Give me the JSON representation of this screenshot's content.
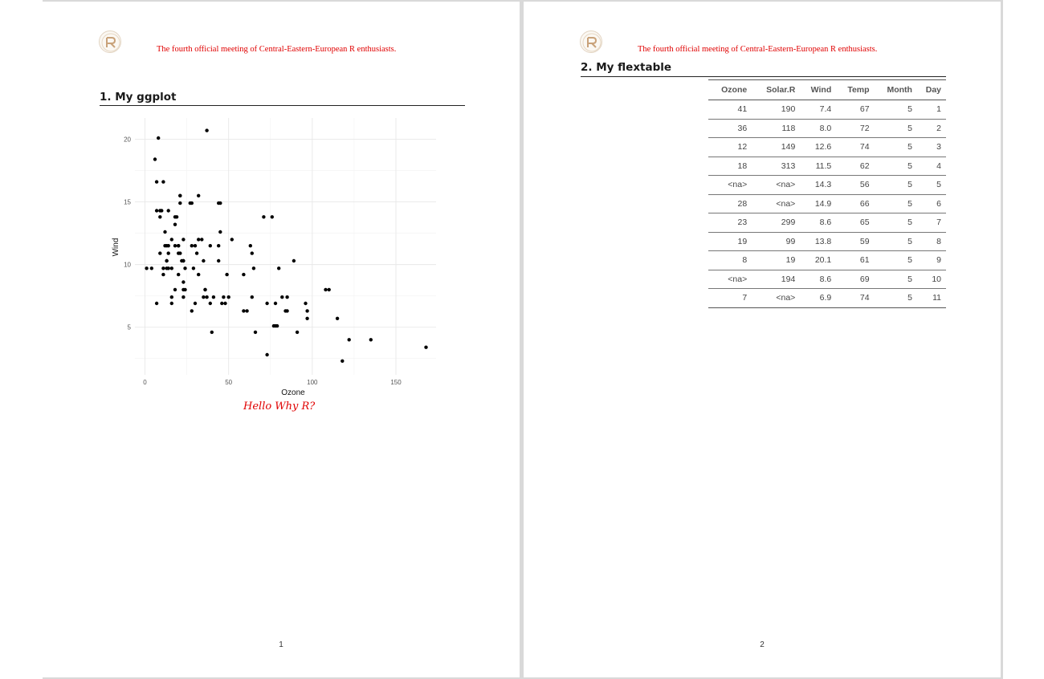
{
  "header": {
    "text": "The fourth official meeting of Central-Eastern-European R enthusiasts."
  },
  "page1": {
    "section_title": "1. My ggplot",
    "caption": "Hello Why R?",
    "page_number": "1"
  },
  "page2": {
    "section_title": "2. My flextable",
    "page_number": "2"
  },
  "chart_data": {
    "type": "scatter",
    "title": "",
    "xlabel": "Ozone",
    "ylabel": "Wind",
    "xlim": [
      -6,
      174
    ],
    "ylim": [
      1.2,
      21.7
    ],
    "x_ticks": [
      0,
      50,
      100,
      150
    ],
    "y_ticks": [
      5,
      10,
      15,
      20
    ],
    "grid": true,
    "points": [
      [
        41,
        7.4
      ],
      [
        36,
        8.0
      ],
      [
        12,
        12.6
      ],
      [
        18,
        11.5
      ],
      [
        28,
        14.9
      ],
      [
        23,
        8.6
      ],
      [
        19,
        13.8
      ],
      [
        8,
        20.1
      ],
      [
        7,
        6.9
      ],
      [
        16,
        9.7
      ],
      [
        11,
        9.2
      ],
      [
        14,
        10.9
      ],
      [
        18,
        13.2
      ],
      [
        14,
        11.5
      ],
      [
        34,
        12.0
      ],
      [
        6,
        18.4
      ],
      [
        30,
        11.5
      ],
      [
        11,
        9.7
      ],
      [
        1,
        9.7
      ],
      [
        11,
        16.6
      ],
      [
        4,
        9.7
      ],
      [
        32,
        12.0
      ],
      [
        23,
        12.0
      ],
      [
        45,
        14.9
      ],
      [
        115,
        5.7
      ],
      [
        37,
        7.4
      ],
      [
        29,
        9.7
      ],
      [
        71,
        13.8
      ],
      [
        39,
        11.5
      ],
      [
        23,
        8.0
      ],
      [
        21,
        14.9
      ],
      [
        37,
        20.7
      ],
      [
        20,
        9.2
      ],
      [
        12,
        11.5
      ],
      [
        13,
        10.3
      ],
      [
        135,
        4.0
      ],
      [
        49,
        9.2
      ],
      [
        32,
        9.2
      ],
      [
        64,
        10.9
      ],
      [
        40,
        4.6
      ],
      [
        77,
        5.1
      ],
      [
        97,
        6.3
      ],
      [
        97,
        5.7
      ],
      [
        85,
        7.4
      ],
      [
        10,
        14.3
      ],
      [
        27,
        14.9
      ],
      [
        7,
        14.3
      ],
      [
        48,
        6.9
      ],
      [
        35,
        10.3
      ],
      [
        61,
        6.3
      ],
      [
        79,
        5.1
      ],
      [
        63,
        11.5
      ],
      [
        16,
        6.9
      ],
      [
        80,
        9.7
      ],
      [
        108,
        8.0
      ],
      [
        20,
        11.5
      ],
      [
        52,
        12.0
      ],
      [
        82,
        7.4
      ],
      [
        50,
        7.4
      ],
      [
        64,
        7.4
      ],
      [
        59,
        9.2
      ],
      [
        39,
        6.9
      ],
      [
        9,
        13.8
      ],
      [
        16,
        7.4
      ],
      [
        78,
        6.9
      ],
      [
        35,
        7.4
      ],
      [
        66,
        4.6
      ],
      [
        122,
        4.0
      ],
      [
        89,
        10.3
      ],
      [
        110,
        8.0
      ],
      [
        44,
        11.5
      ],
      [
        28,
        11.5
      ],
      [
        65,
        9.7
      ],
      [
        22,
        10.3
      ],
      [
        59,
        6.3
      ],
      [
        23,
        7.4
      ],
      [
        31,
        10.9
      ],
      [
        44,
        10.3
      ],
      [
        21,
        15.5
      ],
      [
        9,
        14.3
      ],
      [
        45,
        12.6
      ],
      [
        168,
        3.4
      ],
      [
        73,
        6.9
      ],
      [
        76,
        13.8
      ],
      [
        118,
        2.3
      ],
      [
        84,
        6.3
      ],
      [
        85,
        6.3
      ],
      [
        96,
        6.9
      ],
      [
        78,
        5.1
      ],
      [
        73,
        2.8
      ],
      [
        91,
        4.6
      ],
      [
        47,
        7.4
      ],
      [
        32,
        15.5
      ],
      [
        20,
        10.9
      ],
      [
        23,
        10.3
      ],
      [
        21,
        10.9
      ],
      [
        24,
        9.7
      ],
      [
        44,
        14.9
      ],
      [
        21,
        15.5
      ],
      [
        28,
        6.3
      ],
      [
        9,
        10.9
      ],
      [
        13,
        11.5
      ],
      [
        46,
        6.9
      ],
      [
        18,
        13.8
      ],
      [
        13,
        10.3
      ],
      [
        24,
        8.0
      ],
      [
        16,
        12.0
      ],
      [
        13,
        9.7
      ],
      [
        23,
        10.3
      ],
      [
        36,
        8.0
      ],
      [
        7,
        16.6
      ],
      [
        14,
        9.7
      ],
      [
        30,
        6.9
      ],
      [
        14,
        14.3
      ],
      [
        18,
        8.0
      ],
      [
        20,
        11.5
      ]
    ]
  },
  "table": {
    "columns": [
      "Ozone",
      "Solar.R",
      "Wind",
      "Temp",
      "Month",
      "Day"
    ],
    "rows": [
      [
        "41",
        "190",
        "7.4",
        "67",
        "5",
        "1"
      ],
      [
        "36",
        "118",
        "8.0",
        "72",
        "5",
        "2"
      ],
      [
        "12",
        "149",
        "12.6",
        "74",
        "5",
        "3"
      ],
      [
        "18",
        "313",
        "11.5",
        "62",
        "5",
        "4"
      ],
      [
        "<na>",
        "<na>",
        "14.3",
        "56",
        "5",
        "5"
      ],
      [
        "28",
        "<na>",
        "14.9",
        "66",
        "5",
        "6"
      ],
      [
        "23",
        "299",
        "8.6",
        "65",
        "5",
        "7"
      ],
      [
        "19",
        "99",
        "13.8",
        "59",
        "5",
        "8"
      ],
      [
        "8",
        "19",
        "20.1",
        "61",
        "5",
        "9"
      ],
      [
        "<na>",
        "194",
        "8.6",
        "69",
        "5",
        "10"
      ],
      [
        "7",
        "<na>",
        "6.9",
        "74",
        "5",
        "11"
      ]
    ]
  }
}
